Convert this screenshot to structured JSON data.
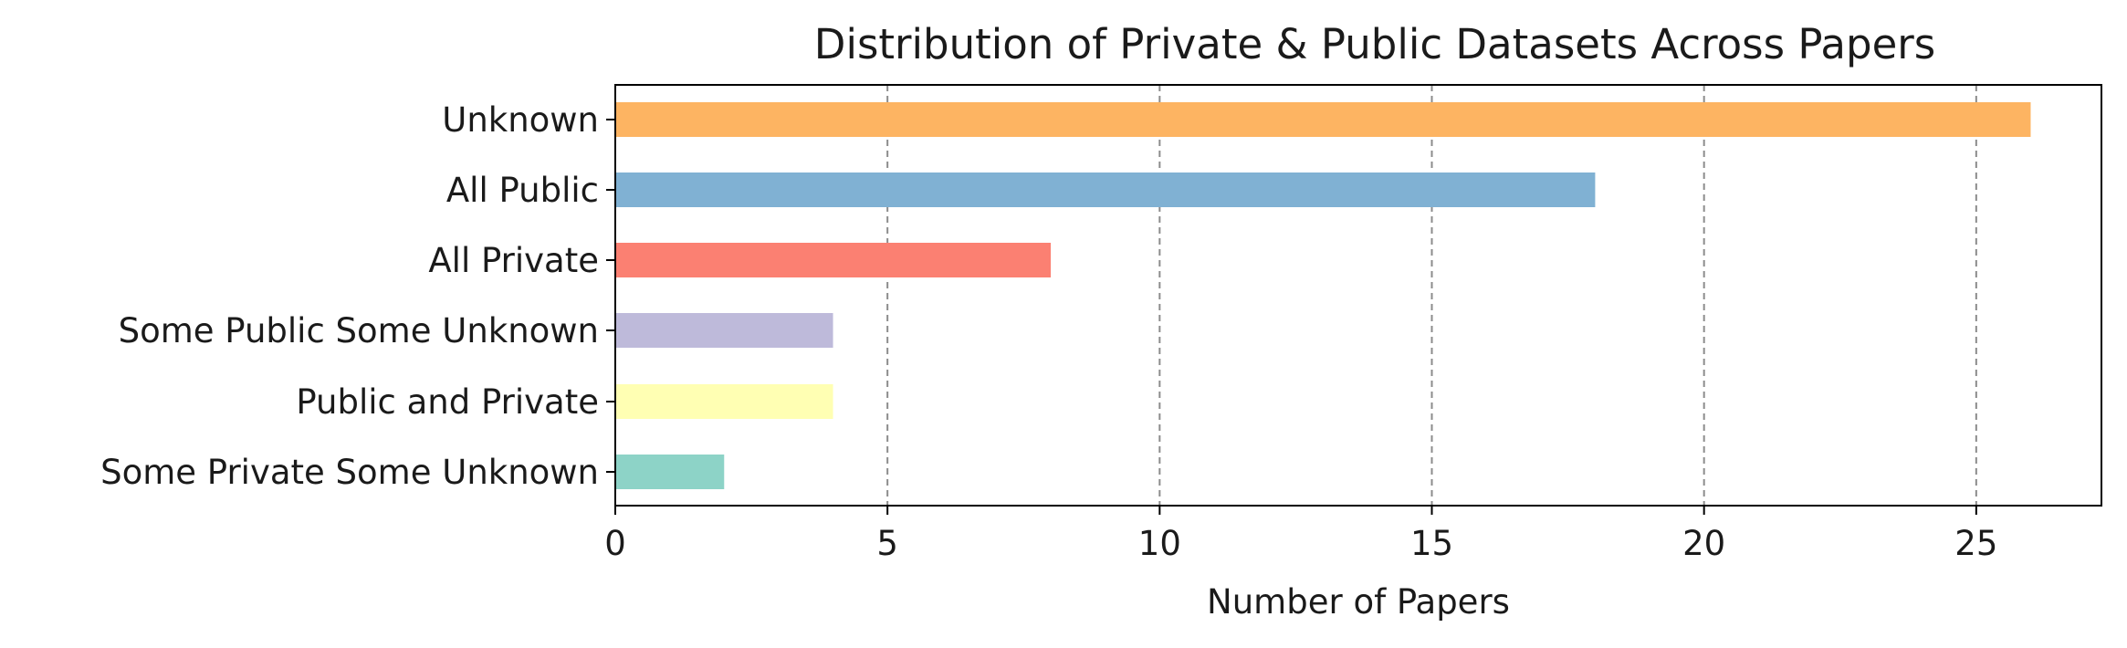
{
  "chart_data": {
    "type": "bar",
    "orientation": "horizontal",
    "title": "Distribution of Private & Public Datasets Across Papers",
    "xlabel": "Number of Papers",
    "ylabel": "",
    "categories": [
      "Unknown",
      "All Public",
      "All Private",
      "Some Public Some Unknown",
      "Public and Private",
      "Some Private Some Unknown"
    ],
    "values": [
      26,
      18,
      8,
      4,
      4,
      2
    ],
    "colors": [
      "#fdb462",
      "#80b1d3",
      "#fb8072",
      "#bebada",
      "#ffffb3",
      "#8dd3c7"
    ],
    "xlim": [
      0,
      27.3
    ],
    "xticks": [
      0,
      5,
      10,
      15,
      20,
      25
    ],
    "grid": "x-dashed",
    "legend": "none"
  }
}
